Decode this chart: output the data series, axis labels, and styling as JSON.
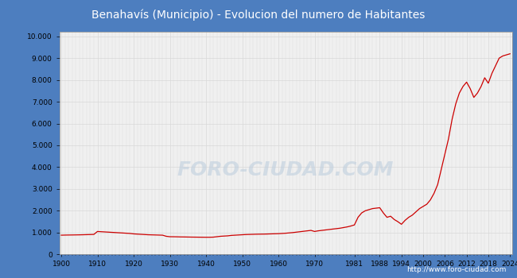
{
  "title": "Benahavís (Municipio) - Evolucion del numero de Habitantes",
  "title_bg": "#4d7ebf",
  "title_color": "white",
  "watermark": "FORO-CIUDAD.COM",
  "footer_url": "http://www.foro-ciudad.com",
  "line_color": "#cc0000",
  "plot_bg": "#f0f0f0",
  "grid_color": "#d8d8d8",
  "outer_bg": "#4d7ebf",
  "xlim": [
    1899.5,
    2024.5
  ],
  "ylim": [
    0,
    10200
  ],
  "yticks": [
    0,
    1000,
    2000,
    3000,
    4000,
    5000,
    6000,
    7000,
    8000,
    9000,
    10000
  ],
  "xtick_labels": [
    "1900",
    "1910",
    "1920",
    "1930",
    "1940",
    "1950",
    "1960",
    "1970",
    "1981",
    "1988",
    "1994",
    "2000",
    "2006",
    "2012",
    "2018",
    "2024"
  ],
  "xtick_positions": [
    1900,
    1910,
    1920,
    1930,
    1940,
    1950,
    1960,
    1970,
    1981,
    1988,
    1994,
    2000,
    2006,
    2012,
    2018,
    2024
  ],
  "years": [
    1900,
    1901,
    1902,
    1903,
    1904,
    1905,
    1906,
    1907,
    1908,
    1909,
    1910,
    1911,
    1912,
    1913,
    1914,
    1915,
    1916,
    1917,
    1918,
    1919,
    1920,
    1921,
    1922,
    1923,
    1924,
    1925,
    1926,
    1927,
    1928,
    1929,
    1930,
    1931,
    1932,
    1933,
    1934,
    1935,
    1936,
    1937,
    1938,
    1939,
    1940,
    1941,
    1942,
    1943,
    1944,
    1945,
    1946,
    1947,
    1948,
    1949,
    1950,
    1951,
    1952,
    1953,
    1954,
    1955,
    1956,
    1957,
    1958,
    1959,
    1960,
    1961,
    1962,
    1963,
    1964,
    1965,
    1966,
    1967,
    1968,
    1969,
    1970,
    1971,
    1972,
    1973,
    1974,
    1975,
    1976,
    1977,
    1978,
    1979,
    1980,
    1981,
    1982,
    1983,
    1984,
    1985,
    1986,
    1987,
    1988,
    1989,
    1990,
    1991,
    1992,
    1993,
    1994,
    1995,
    1996,
    1997,
    1998,
    1999,
    2000,
    2001,
    2002,
    2003,
    2004,
    2005,
    2006,
    2007,
    2008,
    2009,
    2010,
    2011,
    2012,
    2013,
    2014,
    2015,
    2016,
    2017,
    2018,
    2019,
    2020,
    2021,
    2022,
    2023,
    2024
  ],
  "population": [
    880,
    885,
    888,
    890,
    893,
    896,
    900,
    905,
    910,
    915,
    1050,
    1040,
    1030,
    1020,
    1010,
    1000,
    990,
    980,
    970,
    960,
    940,
    930,
    920,
    910,
    900,
    895,
    890,
    885,
    880,
    830,
    810,
    808,
    805,
    800,
    798,
    795,
    792,
    790,
    788,
    786,
    784,
    785,
    790,
    810,
    830,
    840,
    850,
    870,
    880,
    890,
    900,
    910,
    915,
    920,
    925,
    928,
    930,
    935,
    940,
    945,
    950,
    960,
    970,
    985,
    1000,
    1020,
    1040,
    1060,
    1080,
    1100,
    1050,
    1080,
    1100,
    1120,
    1140,
    1160,
    1180,
    1200,
    1230,
    1260,
    1300,
    1350,
    1700,
    1900,
    2000,
    2050,
    2100,
    2120,
    2140,
    1900,
    1700,
    1750,
    1600,
    1500,
    1380,
    1560,
    1700,
    1800,
    1950,
    2100,
    2200,
    2300,
    2500,
    2800,
    3200,
    3900,
    4600,
    5300,
    6200,
    6900,
    7400,
    7700,
    7900,
    7600,
    7200,
    7400,
    7700,
    8100,
    7850,
    8300,
    8650,
    9000,
    9100,
    9150,
    9200
  ]
}
